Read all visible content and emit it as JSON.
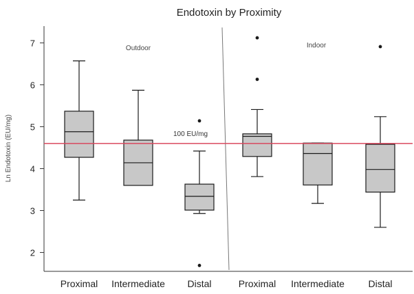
{
  "chart_data": {
    "type": "box",
    "title": "Endotoxin by Proximity",
    "xlabel": "",
    "ylabel": "Ln Endotoxin (EU/mg)",
    "ylim": [
      1.55,
      7.4
    ],
    "yticks": [
      2,
      3,
      4,
      5,
      6,
      7
    ],
    "grid": false,
    "panels": [
      {
        "label": "Outdoor",
        "groups": [
          {
            "category": "Proximal",
            "min": 3.25,
            "q1": 4.27,
            "median": 4.88,
            "q3": 5.37,
            "max": 6.57,
            "outliers": []
          },
          {
            "category": "Intermediate",
            "min": 3.6,
            "q1": 3.6,
            "median": 4.14,
            "q3": 4.68,
            "max": 5.87,
            "outliers": []
          },
          {
            "category": "Distal",
            "min": 2.93,
            "q1": 3.01,
            "median": 3.34,
            "q3": 3.63,
            "max": 4.42,
            "outliers": [
              5.14,
              1.69
            ]
          }
        ]
      },
      {
        "label": "Indoor",
        "groups": [
          {
            "category": "Proximal",
            "min": 3.81,
            "q1": 4.29,
            "median": 4.77,
            "q3": 4.83,
            "max": 5.41,
            "outliers": [
              7.12,
              6.13
            ]
          },
          {
            "category": "Intermediate",
            "min": 3.17,
            "q1": 3.61,
            "median": 4.36,
            "q3": 4.61,
            "max": 4.61,
            "outliers": []
          },
          {
            "category": "Distal",
            "min": 2.6,
            "q1": 3.44,
            "median": 3.98,
            "q3": 4.58,
            "max": 5.24,
            "outliers": [
              6.91
            ]
          }
        ]
      }
    ],
    "reference_line": {
      "value": 4.6,
      "label": "100 EU/mg",
      "color": "#d9485e"
    }
  },
  "colors": {
    "box_fill": "#c8c8c8",
    "stroke": "#1a1a1a",
    "axis": "#333333",
    "divider": "#777777"
  }
}
